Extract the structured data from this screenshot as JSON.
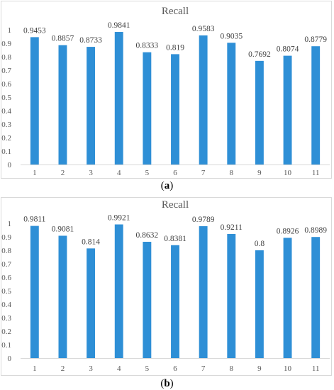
{
  "chart_data": [
    {
      "type": "bar",
      "title": "Recall",
      "categories": [
        "1",
        "2",
        "3",
        "4",
        "5",
        "6",
        "7",
        "8",
        "9",
        "10",
        "11"
      ],
      "values": [
        0.9453,
        0.8857,
        0.8733,
        0.9841,
        0.8333,
        0.819,
        0.9583,
        0.9035,
        0.7692,
        0.8074,
        0.8779
      ],
      "data_labels": [
        "0.9453",
        "0.8857",
        "0.8733",
        "0.9841",
        "0.8333",
        "0.819",
        "0.9583",
        "0.9035",
        "0.7692",
        "0.8074",
        "0.8779"
      ],
      "y_ticks": [
        "0",
        "0.1",
        "0.2",
        "0.3",
        "0.4",
        "0.5",
        "0.6",
        "0.7",
        "0.8",
        "0.9",
        "1"
      ],
      "ylim": [
        0,
        1
      ],
      "grid": false,
      "bar_color": "#2e8fd6",
      "caption_letter": "a"
    },
    {
      "type": "bar",
      "title": "Recall",
      "categories": [
        "1",
        "2",
        "3",
        "4",
        "5",
        "6",
        "7",
        "8",
        "9",
        "10",
        "11"
      ],
      "values": [
        0.9811,
        0.9081,
        0.814,
        0.9921,
        0.8632,
        0.8381,
        0.9789,
        0.9211,
        0.8,
        0.8926,
        0.8989
      ],
      "data_labels": [
        "0.9811",
        "0.9081",
        "0.814",
        "0.9921",
        "0.8632",
        "0.8381",
        "0.9789",
        "0.9211",
        "0.8",
        "0.8926",
        "0.8989"
      ],
      "y_ticks": [
        "0",
        "0.1",
        "0.2",
        "0.3",
        "0.4",
        "0.5",
        "0.6",
        "0.7",
        "0.8",
        "0.9",
        "1"
      ],
      "ylim": [
        0,
        1
      ],
      "grid": false,
      "bar_color": "#2e8fd6",
      "caption_letter": "b"
    }
  ],
  "captions": [
    {
      "open": "(",
      "letter": "a",
      "close": ")"
    },
    {
      "open": "(",
      "letter": "b",
      "close": ")"
    }
  ]
}
